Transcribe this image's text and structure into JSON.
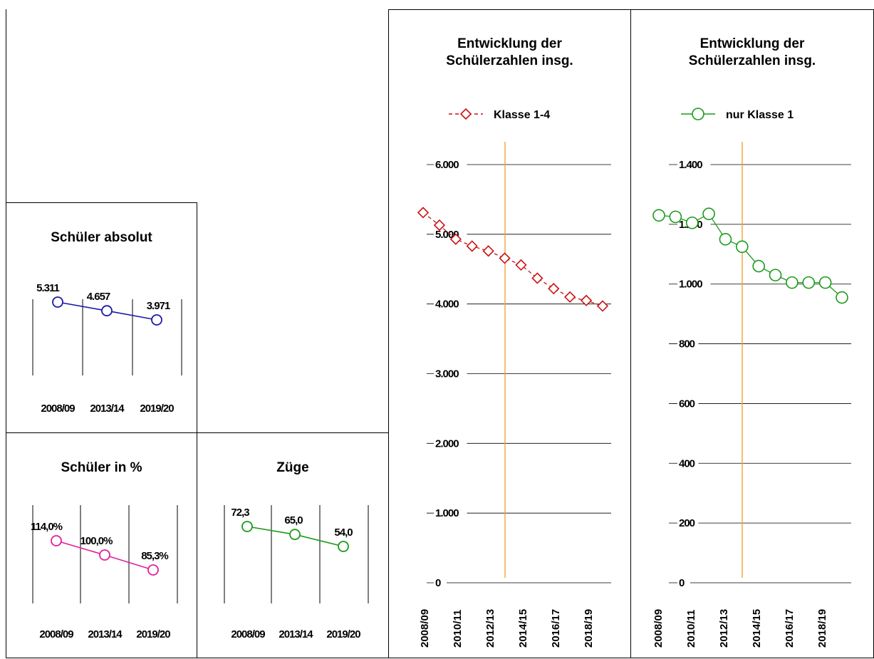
{
  "charts": {
    "absolut": {
      "title": "Schüler absolut",
      "chart_data": {
        "type": "line",
        "title": "Schüler absolut",
        "categories": [
          "2008/09",
          "2013/14",
          "2019/20"
        ],
        "values": [
          5311,
          4657,
          3971
        ],
        "value_labels": [
          "5.311",
          "4.657",
          "3.971"
        ],
        "color": "#1a1aa8"
      }
    },
    "prozent": {
      "title": "Schüler in %",
      "chart_data": {
        "type": "line",
        "title": "Schüler in %",
        "categories": [
          "2008/09",
          "2013/14",
          "2019/20"
        ],
        "values": [
          114.0,
          100.0,
          85.3
        ],
        "value_labels": [
          "114,0%",
          "100,0%",
          "85,3%"
        ],
        "color": "#e0209a"
      }
    },
    "zuege": {
      "title": "Züge",
      "chart_data": {
        "type": "line",
        "title": "Züge",
        "categories": [
          "2008/09",
          "2013/14",
          "2019/20"
        ],
        "values": [
          72.3,
          65.0,
          54.0
        ],
        "value_labels": [
          "72,3",
          "65,0",
          "54,0"
        ],
        "color": "#1a9a1a"
      }
    },
    "klasse14": {
      "title": "Entwicklung der Schülerzahlen insg.",
      "chart_data": {
        "type": "line",
        "title": "Entwicklung der Schülerzahlen insg.",
        "ylim": [
          0,
          6000
        ],
        "y_ticks": [
          0,
          1000,
          2000,
          3000,
          4000,
          5000,
          6000
        ],
        "y_tick_labels": [
          "0",
          "1.000",
          "2.000",
          "3.000",
          "4.000",
          "5.000",
          "6.000"
        ],
        "x_tick_labels": [
          "2008/09",
          "2010/11",
          "2012/13",
          "2014/15",
          "2016/17",
          "2018/19"
        ],
        "grid": true,
        "legend": "top",
        "marker": "diamond",
        "line_style": "dashed",
        "color": "#cc1111",
        "series": [
          {
            "name": "Klasse 1-4",
            "values": [
              5311,
              5130,
              4930,
              4830,
              4760,
              4657,
              4560,
              4370,
              4220,
              4100,
              4050,
              3971
            ]
          }
        ]
      }
    },
    "klasse1": {
      "title": "Entwicklung der Schülerzahlen insg.",
      "chart_data": {
        "type": "line",
        "title": "Entwicklung der Schülerzahlen insg.",
        "ylim": [
          0,
          1400
        ],
        "y_ticks": [
          0,
          200,
          400,
          600,
          800,
          1000,
          1200,
          1400
        ],
        "y_tick_labels": [
          "0",
          "200",
          "400",
          "600",
          "800",
          "1.000",
          "1.200",
          "1.400"
        ],
        "x_tick_labels": [
          "2008/09",
          "2010/11",
          "2012/13",
          "2014/15",
          "2016/17",
          "2018/19"
        ],
        "grid": true,
        "legend": "top",
        "marker": "circle",
        "line_style": "solid",
        "color": "#1a9a1a",
        "series": [
          {
            "name": "nur Klasse 1",
            "values": [
              1230,
              1225,
              1205,
              1235,
              1150,
              1125,
              1060,
              1030,
              1005,
              1005,
              1005,
              955
            ]
          }
        ]
      }
    }
  },
  "colors": {
    "reference_line": "#f2a33a",
    "grid": "#000000",
    "text": "#000000"
  }
}
